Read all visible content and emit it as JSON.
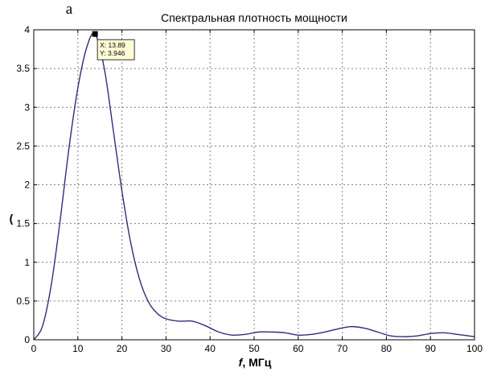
{
  "chart_data": {
    "type": "line",
    "panel_label": "а",
    "title": "Спектральная плотность мощности",
    "xlabel_italic": "f",
    "xlabel_rest": ", МГц",
    "ylabel": "(",
    "xlim": [
      0,
      100
    ],
    "ylim": [
      0,
      4
    ],
    "x_ticks": [
      0,
      10,
      20,
      30,
      40,
      50,
      60,
      70,
      80,
      90,
      100
    ],
    "y_ticks": [
      0,
      0.5,
      1,
      1.5,
      2,
      2.5,
      3,
      3.5,
      4
    ],
    "y_tick_labels": [
      "0",
      "0.5",
      "1",
      "1.5",
      "2",
      "2.5",
      "3",
      "3.5",
      "4"
    ],
    "grid": true,
    "series": [
      {
        "color": "#2b2f7a",
        "x": [
          0,
          2,
          4,
          6,
          8,
          10,
          12,
          13.89,
          16,
          18,
          20,
          22,
          24,
          26,
          28,
          30,
          33,
          36,
          39,
          42,
          45,
          48,
          51,
          54,
          57,
          60,
          63,
          66,
          69,
          72,
          75,
          78,
          81,
          84,
          87,
          90,
          93,
          96,
          100
        ],
        "y": [
          0.0,
          0.18,
          0.72,
          1.55,
          2.48,
          3.25,
          3.77,
          3.946,
          3.5,
          2.72,
          1.92,
          1.25,
          0.78,
          0.49,
          0.34,
          0.27,
          0.24,
          0.24,
          0.18,
          0.1,
          0.06,
          0.07,
          0.1,
          0.1,
          0.09,
          0.06,
          0.07,
          0.1,
          0.14,
          0.17,
          0.15,
          0.1,
          0.05,
          0.04,
          0.05,
          0.08,
          0.09,
          0.07,
          0.04
        ]
      }
    ],
    "datatip": {
      "x": 13.89,
      "y": 3.946,
      "x_text": "X: 13.89",
      "y_text": "Y: 3.946"
    }
  }
}
